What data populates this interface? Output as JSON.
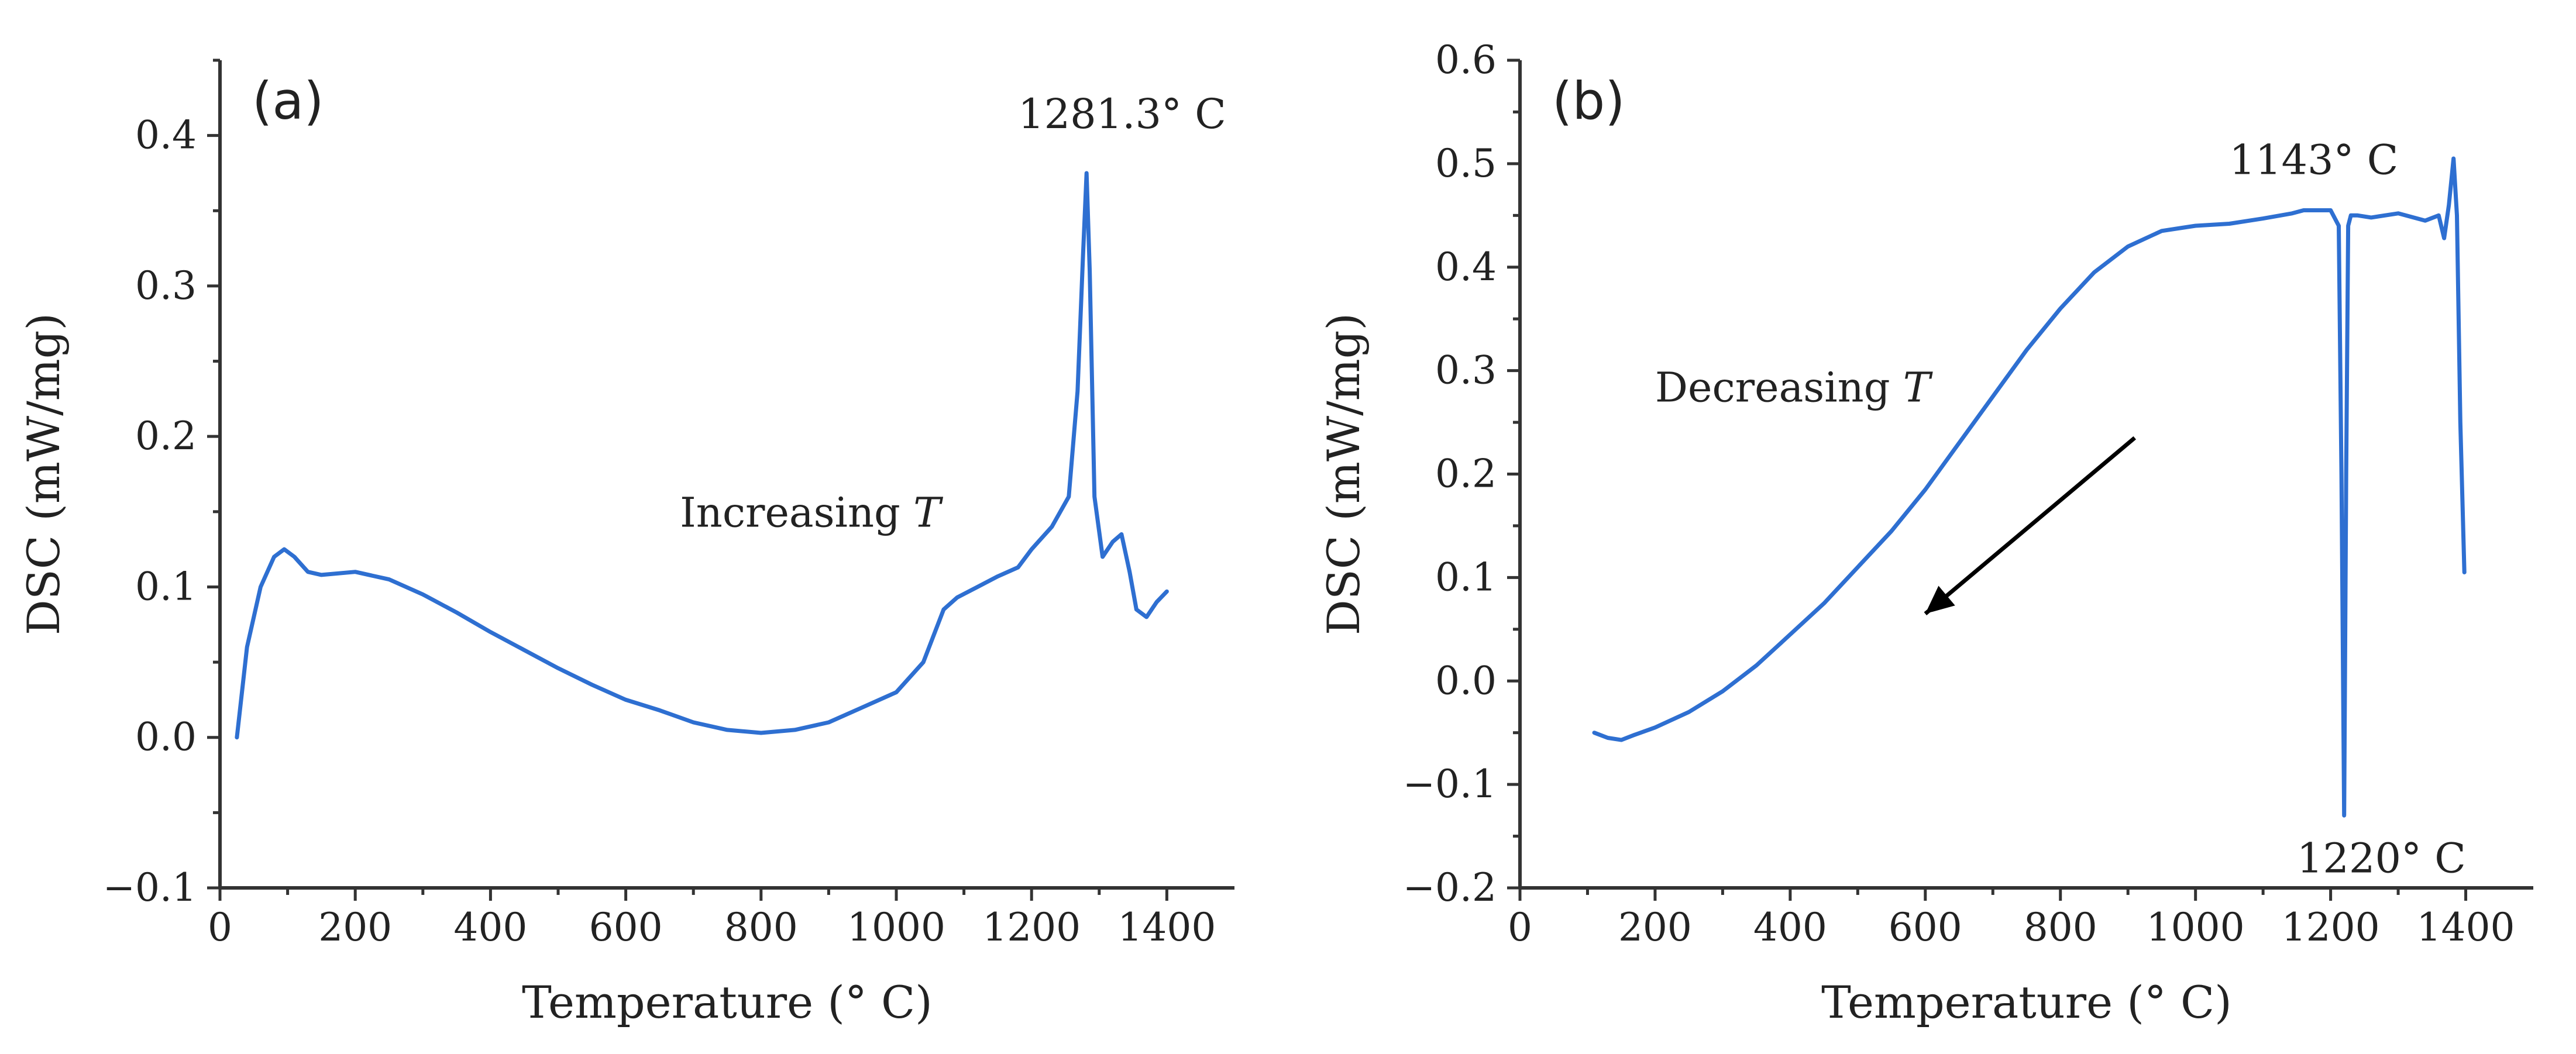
{
  "chart_data": [
    {
      "type": "line",
      "panel_label": "(a)",
      "xlabel": "Temperature (° C)",
      "ylabel": "DSC (mW/mg)",
      "xlim": [
        0,
        1500
      ],
      "ylim": [
        -0.1,
        0.45
      ],
      "x_ticks": [
        0,
        200,
        400,
        600,
        800,
        1000,
        1200,
        1400
      ],
      "x_tick_labels": [
        "0",
        "200",
        "400",
        "600",
        "800",
        "1000",
        "1200",
        "1400"
      ],
      "y_ticks": [
        -0.1,
        0.0,
        0.1,
        0.2,
        0.3,
        0.4
      ],
      "y_tick_labels": [
        "−0.1",
        "0.0",
        "0.1",
        "0.2",
        "0.3",
        "0.4"
      ],
      "grid": false,
      "series": [
        {
          "color": "#2e6fd1",
          "x": [
            25,
            40,
            60,
            80,
            95,
            110,
            130,
            150,
            200,
            250,
            300,
            350,
            400,
            450,
            500,
            550,
            600,
            650,
            700,
            750,
            800,
            850,
            900,
            950,
            1000,
            1040,
            1070,
            1090,
            1120,
            1150,
            1180,
            1200,
            1230,
            1255,
            1268,
            1276,
            1281.3,
            1286,
            1293,
            1305,
            1320,
            1333,
            1345,
            1355,
            1370,
            1385,
            1400
          ],
          "y": [
            0.0,
            0.06,
            0.1,
            0.12,
            0.125,
            0.12,
            0.11,
            0.108,
            0.11,
            0.105,
            0.095,
            0.083,
            0.07,
            0.058,
            0.046,
            0.035,
            0.025,
            0.018,
            0.01,
            0.005,
            0.003,
            0.005,
            0.01,
            0.02,
            0.03,
            0.05,
            0.085,
            0.093,
            0.1,
            0.107,
            0.113,
            0.125,
            0.14,
            0.16,
            0.23,
            0.32,
            0.375,
            0.31,
            0.16,
            0.12,
            0.13,
            0.135,
            0.11,
            0.085,
            0.08,
            0.09,
            0.097
          ]
        }
      ],
      "annotations": [
        {
          "text": "1281.3° C",
          "x": 1180,
          "y": 0.405
        },
        {
          "text": "Increasing",
          "italic_suffix": "T",
          "x": 680,
          "y": 0.14
        }
      ]
    },
    {
      "type": "line",
      "panel_label": "(b)",
      "xlabel": "Temperature (° C)",
      "ylabel": "DSC (mW/mg)",
      "xlim": [
        0,
        1500
      ],
      "ylim": [
        -0.2,
        0.6
      ],
      "x_ticks": [
        0,
        200,
        400,
        600,
        800,
        1000,
        1200,
        1400
      ],
      "x_tick_labels": [
        "0",
        "200",
        "400",
        "600",
        "800",
        "1000",
        "1200",
        "1400"
      ],
      "y_ticks": [
        -0.2,
        -0.1,
        0.0,
        0.1,
        0.2,
        0.3,
        0.4,
        0.5,
        0.6
      ],
      "y_tick_labels": [
        "−0.2",
        "−0.1",
        "0.0",
        "0.1",
        "0.2",
        "0.3",
        "0.4",
        "0.5",
        "0.6"
      ],
      "grid": false,
      "series": [
        {
          "color": "#2e6fd1",
          "x": [
            110,
            130,
            150,
            170,
            200,
            250,
            300,
            350,
            400,
            450,
            500,
            550,
            600,
            650,
            700,
            750,
            800,
            850,
            900,
            950,
            980,
            1000,
            1050,
            1100,
            1143,
            1160,
            1200,
            1212,
            1216,
            1220,
            1223,
            1226,
            1230,
            1240,
            1260,
            1300,
            1340,
            1360,
            1368,
            1375,
            1382,
            1387,
            1392,
            1398
          ],
          "y": [
            -0.05,
            -0.055,
            -0.057,
            -0.052,
            -0.045,
            -0.03,
            -0.01,
            0.015,
            0.045,
            0.075,
            0.11,
            0.145,
            0.185,
            0.23,
            0.275,
            0.32,
            0.36,
            0.395,
            0.42,
            0.435,
            0.438,
            0.44,
            0.442,
            0.447,
            0.452,
            0.455,
            0.455,
            0.44,
            0.2,
            -0.13,
            0.2,
            0.44,
            0.45,
            0.45,
            0.448,
            0.452,
            0.445,
            0.45,
            0.428,
            0.46,
            0.505,
            0.45,
            0.25,
            0.105
          ]
        }
      ],
      "annotations": [
        {
          "text": "1143° C",
          "x": 1050,
          "y": 0.49
        },
        {
          "text": "1220° C",
          "x": 1150,
          "y": -0.185
        },
        {
          "text": "Decreasing",
          "italic_suffix": "T",
          "x": 200,
          "y": 0.27
        }
      ],
      "arrow": {
        "from": [
          910,
          0.235
        ],
        "to": [
          600,
          0.065
        ]
      }
    }
  ]
}
